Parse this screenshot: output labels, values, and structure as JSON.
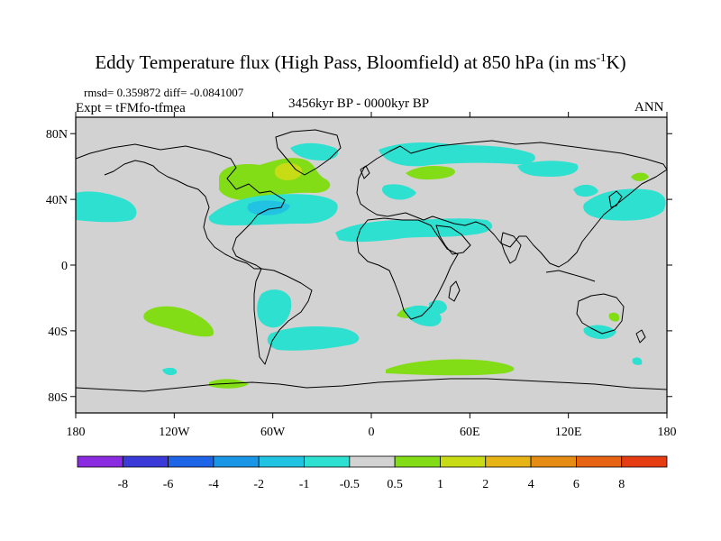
{
  "figure": {
    "title_main": "Eddy Temperature flux (High Pass, Bloomfield) at 850 hPa (in ms",
    "title_sup": "-1",
    "title_end": "K)",
    "stats": "rmsd= 0.359872  diff= -0.0841007",
    "experiment": "Expt = tFMfo-tfmea",
    "period": "3456kyr BP - 0000kyr BP",
    "season": "ANN"
  },
  "map": {
    "projection": "cylindrical equidistant",
    "land_color": "#d2d2d2",
    "lat_ticks": [
      "80N",
      "40N",
      "0",
      "40S",
      "80S"
    ],
    "lon_ticks": [
      "180",
      "120W",
      "60W",
      "0",
      "60E",
      "120E",
      "180"
    ]
  },
  "colorbar": {
    "levels": [
      "-8",
      "-6",
      "-4",
      "-2",
      "-1",
      "-0.5",
      "0.5",
      "1",
      "2",
      "4",
      "6",
      "8"
    ],
    "colors": [
      "#8a2be2",
      "#3a3ad8",
      "#1e64e6",
      "#1a96e6",
      "#22c2e2",
      "#2ee0d0",
      "#d2d2d2",
      "#82dc16",
      "#c8dc16",
      "#e6b414",
      "#e68c14",
      "#e66414",
      "#e63c14"
    ]
  },
  "anomaly_regions": [
    {
      "name": "North Atlantic / N America positive",
      "category": "0.5 to 1"
    },
    {
      "name": "Labrador core",
      "category": "1 to 2"
    },
    {
      "name": "North Atlantic midlatitude negative",
      "category": "-1 to -0.5"
    },
    {
      "name": "Mediterranean / Middle East negative",
      "category": "-1 to -0.5"
    },
    {
      "name": "Scandinavia / Russia negative",
      "category": "-1 to -0.5"
    },
    {
      "name": "North Pacific negative",
      "category": "-1 to -0.5"
    },
    {
      "name": "South Pacific positive",
      "category": "0.5 to 1"
    },
    {
      "name": "Southern Ocean positive",
      "category": "0.5 to 1"
    }
  ]
}
